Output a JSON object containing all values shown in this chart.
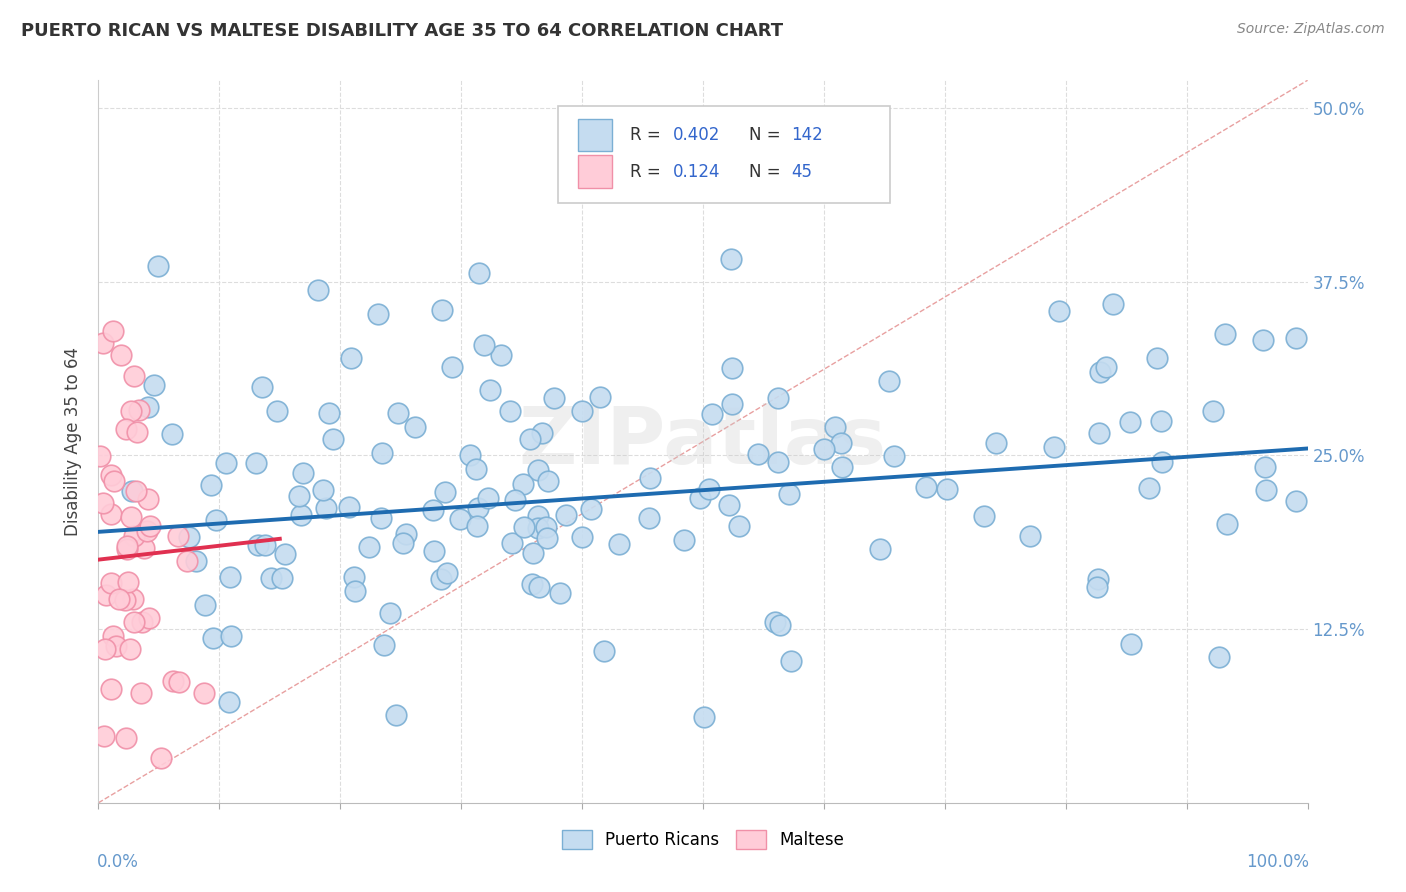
{
  "title": "PUERTO RICAN VS MALTESE DISABILITY AGE 35 TO 64 CORRELATION CHART",
  "source": "Source: ZipAtlas.com",
  "ylabel": "Disability Age 35 to 64",
  "xlim": [
    0.0,
    1.0
  ],
  "ylim": [
    0.0,
    0.52
  ],
  "ytick_vals": [
    0.0,
    0.125,
    0.25,
    0.375,
    0.5
  ],
  "ytick_labels": [
    "",
    "12.5%",
    "25.0%",
    "37.5%",
    "50.0%"
  ],
  "blue_R": 0.402,
  "blue_N": 142,
  "pink_R": 0.124,
  "pink_N": 45,
  "blue_face": "#C5DCF0",
  "blue_edge": "#7BAFD4",
  "pink_face": "#FFCCD8",
  "pink_edge": "#F090A8",
  "trend_blue": "#1E6BB0",
  "trend_pink": "#E03050",
  "diagonal_color": "#E8A0A0",
  "diagonal_style": "--",
  "watermark": "ZIPatlas",
  "watermark_color": "#CCCCCC",
  "background_color": "#FFFFFF",
  "grid_color": "#DDDDDD",
  "tick_color": "#6699CC",
  "title_color": "#333333",
  "ylabel_color": "#444444",
  "source_color": "#888888",
  "legend_label_blue": "Puerto Ricans",
  "legend_label_pink": "Maltese",
  "blue_trend_x0": 0.0,
  "blue_trend_x1": 1.0,
  "blue_trend_y0": 0.195,
  "blue_trend_y1": 0.255,
  "pink_trend_x0": 0.0,
  "pink_trend_x1": 0.15,
  "pink_trend_y0": 0.175,
  "pink_trend_y1": 0.19
}
